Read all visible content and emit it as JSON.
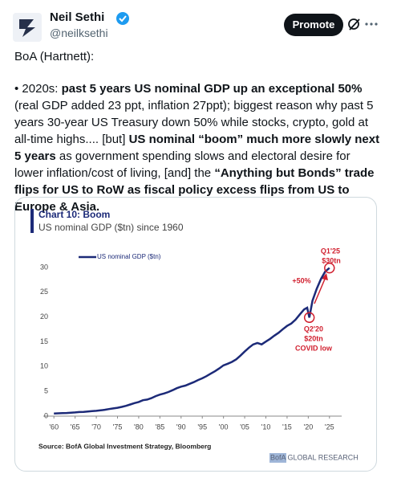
{
  "tweet": {
    "name": "Neil Sethi",
    "handle": "@neilksethi",
    "button": "Promote",
    "intro": "BoA (Hartnett):",
    "segments": [
      {
        "text": "• 2020s: ",
        "bold": false
      },
      {
        "text": "past 5 years US nominal GDP up an exceptional 50%",
        "bold": true
      },
      {
        "text": " (real GDP added 23 ppt, inflation 27ppt); biggest reason why past 5 years 30-year US Treasury down 50% while stocks, crypto, gold at all-time highs.... [but] ",
        "bold": false
      },
      {
        "text": "US nominal “boom” much more slowly next 5 years",
        "bold": true
      },
      {
        "text": " as government spending slows and electoral desire for lower inflation/cost of living, [and] the ",
        "bold": false
      },
      {
        "text": "“Anything but Bonds” trade flips for US to RoW as fiscal policy excess flips from US to Europe  & Asia.",
        "bold": true
      }
    ]
  },
  "chart_data": {
    "type": "line",
    "title": "Chart 10: Boom",
    "subtitle": "US nominal GDP ($tn) since 1960",
    "source": "Source: BofA Global Investment Strategy, Bloomberg",
    "brand": "BofA GLOBAL RESEARCH",
    "x": [
      1960,
      1961,
      1962,
      1963,
      1964,
      1965,
      1966,
      1967,
      1968,
      1969,
      1970,
      1971,
      1972,
      1973,
      1974,
      1975,
      1976,
      1977,
      1978,
      1979,
      1980,
      1981,
      1982,
      1983,
      1984,
      1985,
      1986,
      1987,
      1988,
      1989,
      1990,
      1991,
      1992,
      1993,
      1994,
      1995,
      1996,
      1997,
      1998,
      1999,
      2000,
      2001,
      2002,
      2003,
      2004,
      2005,
      2006,
      2007,
      2008,
      2009,
      2010,
      2011,
      2012,
      2013,
      2014,
      2015,
      2016,
      2017,
      2018,
      2019,
      2019.75,
      2020.25,
      2021,
      2022,
      2023,
      2024,
      2025
    ],
    "series": [
      {
        "name": "US nominal GDP ($tn)",
        "color": "#1c2a78",
        "values": [
          0.54,
          0.56,
          0.6,
          0.64,
          0.69,
          0.74,
          0.82,
          0.86,
          0.94,
          1.02,
          1.07,
          1.16,
          1.28,
          1.43,
          1.55,
          1.68,
          1.87,
          2.08,
          2.35,
          2.63,
          2.86,
          3.21,
          3.34,
          3.64,
          4.04,
          4.34,
          4.58,
          4.86,
          5.24,
          5.64,
          5.96,
          6.16,
          6.52,
          6.86,
          7.29,
          7.64,
          8.07,
          8.58,
          9.06,
          9.63,
          10.25,
          10.58,
          10.94,
          11.46,
          12.21,
          13.04,
          13.82,
          14.47,
          14.77,
          14.48,
          15.05,
          15.6,
          16.25,
          16.84,
          17.55,
          18.21,
          18.7,
          19.48,
          20.53,
          21.54,
          21.9,
          19.9,
          23.3,
          25.7,
          27.7,
          29.2,
          29.9
        ]
      }
    ],
    "xlim": [
      1957.5,
      2027.5
    ],
    "xticks": [
      {
        "value": 1960,
        "label": "'60"
      },
      {
        "value": 1965,
        "label": "'65"
      },
      {
        "value": 1970,
        "label": "'70"
      },
      {
        "value": 1975,
        "label": "'75"
      },
      {
        "value": 1980,
        "label": "'80"
      },
      {
        "value": 1985,
        "label": "'85"
      },
      {
        "value": 1990,
        "label": "'90"
      },
      {
        "value": 1995,
        "label": "'95"
      },
      {
        "value": 2000,
        "label": "'00"
      },
      {
        "value": 2005,
        "label": "'05"
      },
      {
        "value": 2010,
        "label": "'10"
      },
      {
        "value": 2015,
        "label": "'15"
      },
      {
        "value": 2020,
        "label": "'20"
      },
      {
        "value": 2025,
        "label": "'25"
      }
    ],
    "ylim": [
      0,
      32
    ],
    "yticks": [
      0,
      5,
      10,
      15,
      20,
      25,
      30
    ],
    "grid": false,
    "annotations": {
      "growth": "+50%",
      "end": [
        "Q1'25",
        "$30tn"
      ],
      "low": [
        "Q2'20",
        "$20tn",
        "COVID low"
      ]
    }
  }
}
